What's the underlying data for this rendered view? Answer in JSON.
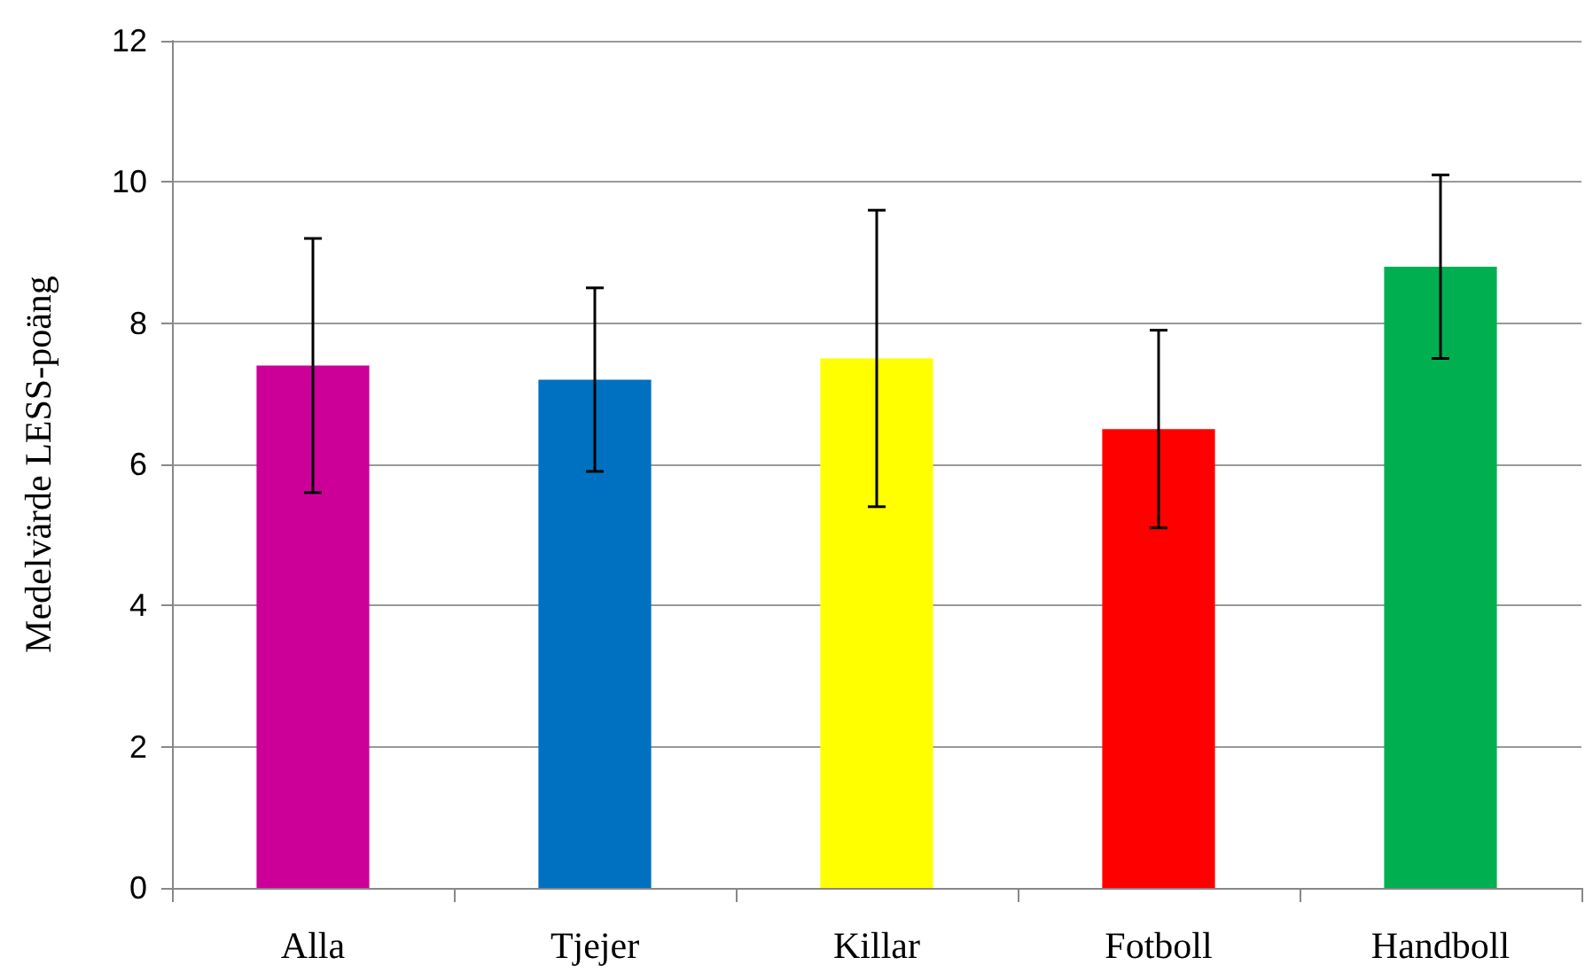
{
  "chart_data": {
    "type": "bar",
    "ylabel": "Medelvärde LESS-poäng",
    "categories": [
      "Alla",
      "Tjejer",
      "Killar",
      "Fotboll",
      "Handboll"
    ],
    "values": [
      7.4,
      7.2,
      7.5,
      6.5,
      8.8
    ],
    "colors": [
      "#cc0099",
      "#0070c0",
      "#ffff00",
      "#ff0000",
      "#00b050"
    ],
    "errors": [
      1.8,
      1.3,
      2.1,
      1.4,
      1.3
    ],
    "ylim": [
      0,
      12
    ],
    "yticks": [
      0,
      2,
      4,
      6,
      8,
      10,
      12
    ],
    "grid": "y"
  }
}
